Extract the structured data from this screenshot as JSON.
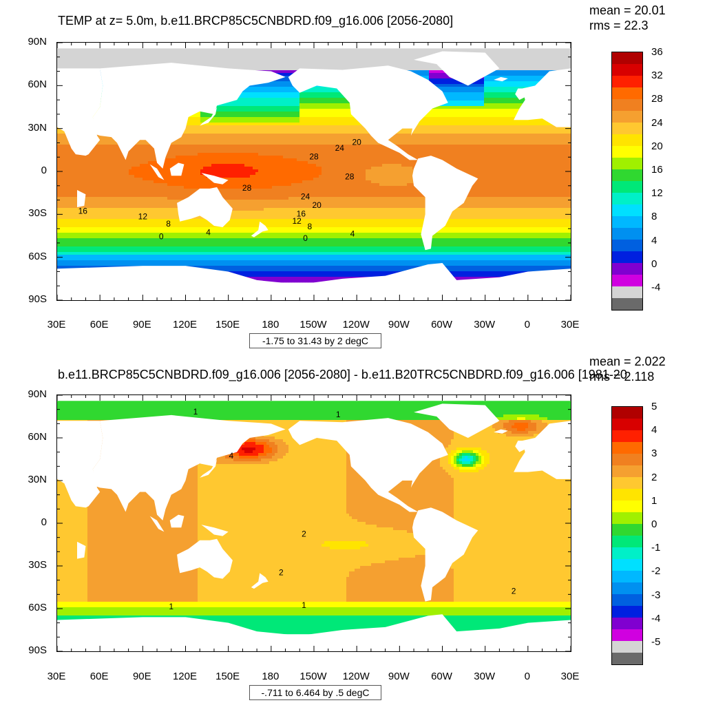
{
  "chart_data": [
    {
      "type": "heatmap",
      "title": "TEMP at z=   5.0m, b.e11.BRCP85C5CNBDRD.f09_g16.006 [2056-2080]",
      "stats": {
        "mean": "mean = 20.01",
        "rms": "rms = 22.3"
      },
      "range_text": "-1.75 to 31.43 by 2 degC",
      "y_ticks": [
        "90N",
        "60N",
        "30N",
        "0",
        "30S",
        "60S",
        "90S"
      ],
      "x_ticks": [
        "30E",
        "60E",
        "90E",
        "120E",
        "150E",
        "180",
        "150W",
        "120W",
        "90W",
        "60W",
        "30W",
        "0",
        "30E"
      ],
      "ylim": [
        -90,
        90
      ],
      "xlim": [
        30,
        390
      ],
      "legend_levels": [
        "36",
        "32",
        "28",
        "24",
        "20",
        "16",
        "12",
        "8",
        "4",
        "0",
        "-4"
      ],
      "legend_colors": [
        "#b00000",
        "#d80000",
        "#ff2000",
        "#ff6a00",
        "#f08020",
        "#f5a030",
        "#ffc830",
        "#ffe400",
        "#ffff00",
        "#a0f000",
        "#30d830",
        "#00e878",
        "#00f0c8",
        "#00e0ff",
        "#00b8ff",
        "#0090f0",
        "#0060e0",
        "#0020e0",
        "#8000d0",
        "#d000e0",
        "#d4d4d4",
        "#6a6a6a"
      ],
      "contour_labels": [
        {
          "text": "20",
          "lon": 240,
          "lat": 20
        },
        {
          "text": "24",
          "lon": 228,
          "lat": 16
        },
        {
          "text": "28",
          "lon": 210,
          "lat": 10
        },
        {
          "text": "28",
          "lon": 235,
          "lat": -4
        },
        {
          "text": "28",
          "lon": 163,
          "lat": -12
        },
        {
          "text": "24",
          "lon": 204,
          "lat": -18
        },
        {
          "text": "20",
          "lon": 212,
          "lat": -24
        },
        {
          "text": "16",
          "lon": 48,
          "lat": -28
        },
        {
          "text": "12",
          "lon": 90,
          "lat": -32
        },
        {
          "text": "16",
          "lon": 201,
          "lat": -30
        },
        {
          "text": "12",
          "lon": 198,
          "lat": -35
        },
        {
          "text": "8",
          "lon": 108,
          "lat": -37
        },
        {
          "text": "8",
          "lon": 207,
          "lat": -39
        },
        {
          "text": "4",
          "lon": 136,
          "lat": -43
        },
        {
          "text": "4",
          "lon": 237,
          "lat": -44
        },
        {
          "text": "0",
          "lon": 103,
          "lat": -46
        },
        {
          "text": "0",
          "lon": 204,
          "lat": -47
        }
      ]
    },
    {
      "type": "heatmap",
      "title": "b.e11.BRCP85C5CNBDRD.f09_g16.006 [2056-2080] - b.e11.B20TRC5CNBDRD.f09_g16.006 [1981-20",
      "stats": {
        "mean": "mean = 2.022",
        "rms": "rms = 2.118"
      },
      "range_text": "-.711 to 6.464 by .5 degC",
      "y_ticks": [
        "90N",
        "60N",
        "30N",
        "0",
        "30S",
        "60S",
        "90S"
      ],
      "x_ticks": [
        "30E",
        "60E",
        "90E",
        "120E",
        "150E",
        "180",
        "150W",
        "120W",
        "90W",
        "60W",
        "30W",
        "0",
        "30E"
      ],
      "ylim": [
        -90,
        90
      ],
      "xlim": [
        30,
        390
      ],
      "legend_levels": [
        "5",
        "4",
        "3",
        "2",
        "1",
        "0",
        "-1",
        "-2",
        "-3",
        "-4",
        "-5"
      ],
      "legend_colors": [
        "#b00000",
        "#d80000",
        "#ff2000",
        "#ff6a00",
        "#f08020",
        "#f5a030",
        "#ffc830",
        "#ffe400",
        "#ffff00",
        "#a0f000",
        "#30d830",
        "#00e878",
        "#00f0c8",
        "#00e0ff",
        "#00b8ff",
        "#0090f0",
        "#0060e0",
        "#0020e0",
        "#8000d0",
        "#d000e0",
        "#d4d4d4",
        "#6a6a6a"
      ],
      "contour_labels": [
        {
          "text": "1",
          "lon": 127,
          "lat": 78
        },
        {
          "text": "1",
          "lon": 227,
          "lat": 76
        },
        {
          "text": "4",
          "lon": 152,
          "lat": 47
        },
        {
          "text": "2",
          "lon": 203,
          "lat": -8
        },
        {
          "text": "2",
          "lon": 187,
          "lat": -35
        },
        {
          "text": "2",
          "lon": 350,
          "lat": -48
        },
        {
          "text": "1",
          "lon": 110,
          "lat": -59
        },
        {
          "text": "1",
          "lon": 203,
          "lat": -58
        }
      ]
    }
  ]
}
